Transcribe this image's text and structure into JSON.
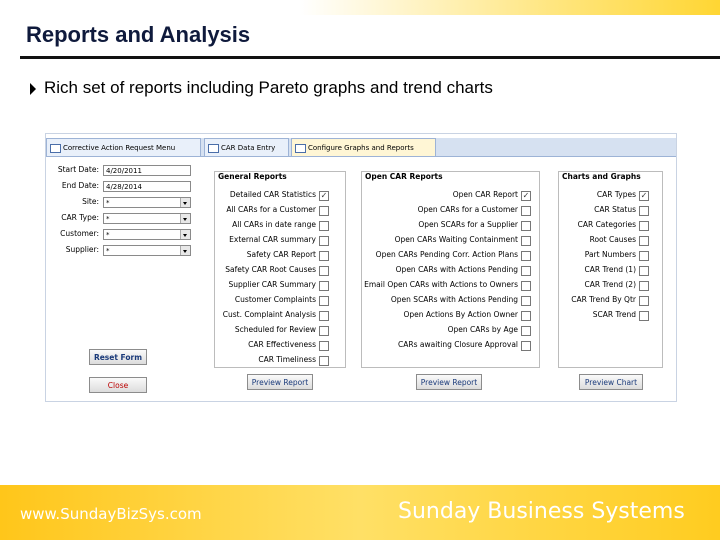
{
  "header": {
    "title": "Reports and Analysis",
    "bullet": "Rich set of reports including Pareto graphs and trend charts"
  },
  "window": {
    "tabs": [
      "Corrective Action Request Menu",
      "CAR Data Entry",
      "Configure Graphs and Reports"
    ],
    "fields": [
      {
        "label": "Start Date:",
        "value": "4/20/2011"
      },
      {
        "label": "End Date:",
        "value": "4/28/2014"
      },
      {
        "label": "Site:",
        "value": "*"
      },
      {
        "label": "CAR Type:",
        "value": "*"
      },
      {
        "label": "Customer:",
        "value": "*"
      },
      {
        "label": "Supplier:",
        "value": "*"
      }
    ],
    "buttons": [
      "Reset Form",
      "Close"
    ],
    "groups": [
      {
        "title": "General Reports",
        "button": "Preview Report",
        "items": [
          {
            "label": "Detailed CAR Statistics",
            "checked": true
          },
          {
            "label": "All CARs for a Customer",
            "checked": false
          },
          {
            "label": "All CARs in date range",
            "checked": false
          },
          {
            "label": "External CAR summary",
            "checked": false
          },
          {
            "label": "Safety CAR Report",
            "checked": false
          },
          {
            "label": "Safety CAR Root Causes",
            "checked": false
          },
          {
            "label": "Supplier CAR Summary",
            "checked": false
          },
          {
            "label": "Customer Complaints",
            "checked": false
          },
          {
            "label": "Cust. Complaint Analysis",
            "checked": false
          },
          {
            "label": "Scheduled for Review",
            "checked": false
          },
          {
            "label": "CAR Effectiveness",
            "checked": false
          },
          {
            "label": "CAR Timeliness",
            "checked": false
          }
        ]
      },
      {
        "title": "Open CAR Reports",
        "button": "Preview Report",
        "items": [
          {
            "label": "Open CAR Report",
            "checked": true
          },
          {
            "label": "Open CARs for a Customer",
            "checked": false
          },
          {
            "label": "Open SCARs for a Supplier",
            "checked": false
          },
          {
            "label": "Open CARs Waiting Containment",
            "checked": false
          },
          {
            "label": "Open CARs Pending Corr. Action Plans",
            "checked": false
          },
          {
            "label": "Open CARs with Actions Pending",
            "checked": false
          },
          {
            "label": "Email Open CARs with Actions to Owners",
            "checked": false
          },
          {
            "label": "Open SCARs with Actions Pending",
            "checked": false
          },
          {
            "label": "Open Actions By Action Owner",
            "checked": false
          },
          {
            "label": "Open CARs by Age",
            "checked": false
          },
          {
            "label": "CARs awaiting Closure Approval",
            "checked": false
          }
        ]
      },
      {
        "title": "Charts and Graphs",
        "button": "Preview Chart",
        "items": [
          {
            "label": "CAR Types",
            "checked": true
          },
          {
            "label": "CAR Status",
            "checked": false
          },
          {
            "label": "CAR Categories",
            "checked": false
          },
          {
            "label": "Root Causes",
            "checked": false
          },
          {
            "label": "Part Numbers",
            "checked": false
          },
          {
            "label": "CAR Trend (1)",
            "checked": false
          },
          {
            "label": "CAR Trend (2)",
            "checked": false
          },
          {
            "label": "CAR Trend By Qtr",
            "checked": false
          },
          {
            "label": "SCAR Trend",
            "checked": false
          }
        ]
      }
    ]
  },
  "footer": {
    "url": "www.SundayBizSys.com",
    "company": "Sunday Business Systems"
  }
}
